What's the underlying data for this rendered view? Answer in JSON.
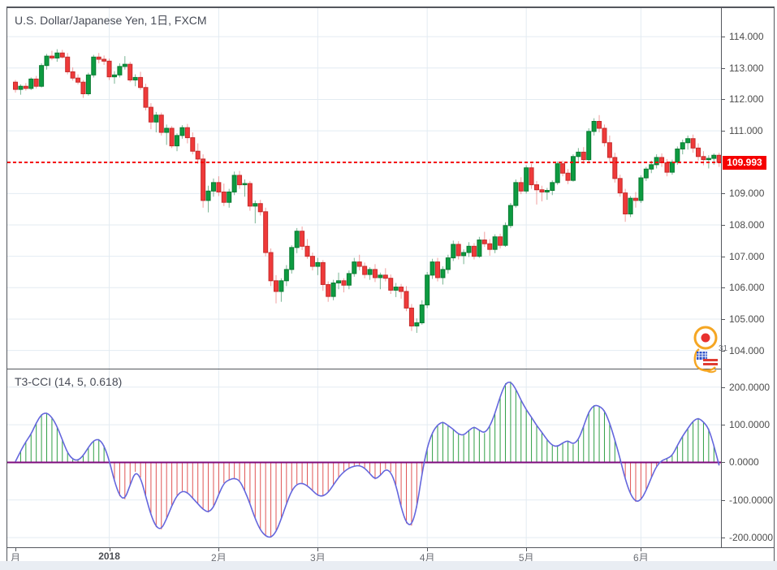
{
  "page": {
    "frame_border_color": "#54575d",
    "grid_color": "#e3ebf2",
    "background": "#ffffff"
  },
  "main_chart": {
    "legend": "U.S. Dollar/Japanese Yen, 1日, FXCM",
    "current_price_label": "109.993",
    "current_price_color": "#f50000",
    "price_axis_labels": [
      "114.000",
      "113.000",
      "112.000",
      "111.000",
      "109.000",
      "108.000",
      "107.000",
      "106.000",
      "105.000",
      "104.000"
    ],
    "price_axis_values": [
      114,
      113,
      112,
      111,
      109,
      108,
      107,
      106,
      105,
      104
    ]
  },
  "indicator": {
    "legend": "T3-CCI (14, 5, 0.618)",
    "axis_labels": [
      "200.0000",
      "100.0000",
      "0.0000",
      "-100.0000",
      "-200.0000"
    ],
    "axis_values": [
      200,
      100,
      0,
      -100,
      -200
    ]
  },
  "time_axis": {
    "labels": [
      {
        "text": "月",
        "index": 0,
        "bold": false
      },
      {
        "text": "2018",
        "index": 18,
        "bold": true
      },
      {
        "text": "2月",
        "index": 39,
        "bold": false
      },
      {
        "text": "3月",
        "index": 58,
        "bold": false
      },
      {
        "text": "4月",
        "index": 79,
        "bold": false
      },
      {
        "text": "5月",
        "index": 98,
        "bold": false
      },
      {
        "text": "6月",
        "index": 120,
        "bold": false
      }
    ]
  },
  "watermark": {
    "badge_text": "31"
  },
  "chart_data": [
    {
      "type": "candlestick",
      "title": "U.S. Dollar/Japanese Yen, 1日, FXCM",
      "symbol": "U.S. Dollar/Japanese Yen",
      "interval": "1日",
      "exchange": "FXCM",
      "last_price": 109.993,
      "ylim": [
        103.42,
        114.91
      ],
      "up_color": "#0d9b41",
      "down_color": "#ef3a3a",
      "candles": [
        [
          112.55,
          112.62,
          112.22,
          112.32
        ],
        [
          112.32,
          112.48,
          112.15,
          112.42
        ],
        [
          112.42,
          112.52,
          112.28,
          112.35
        ],
        [
          112.35,
          112.7,
          112.3,
          112.65
        ],
        [
          112.65,
          112.75,
          112.35,
          112.42
        ],
        [
          112.42,
          113.15,
          112.38,
          113.08
        ],
        [
          113.08,
          113.45,
          112.95,
          113.38
        ],
        [
          113.38,
          113.55,
          113.25,
          113.32
        ],
        [
          113.32,
          113.6,
          113.2,
          113.48
        ],
        [
          113.48,
          113.58,
          113.3,
          113.35
        ],
        [
          113.35,
          113.48,
          112.8,
          112.88
        ],
        [
          112.88,
          113.02,
          112.6,
          112.68
        ],
        [
          112.68,
          112.8,
          112.48,
          112.55
        ],
        [
          112.55,
          112.62,
          112.05,
          112.18
        ],
        [
          112.18,
          112.85,
          112.12,
          112.78
        ],
        [
          112.78,
          113.42,
          112.7,
          113.35
        ],
        [
          113.35,
          113.48,
          113.15,
          113.28
        ],
        [
          113.28,
          113.4,
          113.1,
          113.22
        ],
        [
          113.22,
          113.3,
          112.62,
          112.72
        ],
        [
          112.72,
          112.9,
          112.5,
          112.78
        ],
        [
          112.78,
          113.15,
          112.7,
          113.05
        ],
        [
          113.05,
          113.38,
          112.95,
          113.12
        ],
        [
          113.12,
          113.2,
          112.55,
          112.62
        ],
        [
          112.62,
          112.8,
          112.42,
          112.7
        ],
        [
          112.7,
          112.88,
          112.3,
          112.38
        ],
        [
          112.38,
          112.5,
          111.65,
          111.75
        ],
        [
          111.75,
          111.88,
          111.05,
          111.28
        ],
        [
          111.28,
          111.6,
          110.95,
          111.5
        ],
        [
          111.5,
          111.58,
          110.85,
          110.95
        ],
        [
          110.95,
          111.2,
          110.55,
          111.08
        ],
        [
          111.08,
          111.15,
          110.45,
          110.52
        ],
        [
          110.52,
          110.92,
          110.35,
          110.85
        ],
        [
          110.85,
          111.18,
          110.75,
          111.1
        ],
        [
          111.1,
          111.22,
          110.6,
          110.78
        ],
        [
          110.78,
          110.95,
          110.25,
          110.35
        ],
        [
          110.35,
          110.6,
          109.95,
          110.1
        ],
        [
          110.1,
          110.25,
          108.55,
          108.78
        ],
        [
          108.78,
          109.25,
          108.4,
          109.08
        ],
        [
          109.08,
          109.48,
          108.9,
          109.35
        ],
        [
          109.35,
          109.55,
          108.92,
          109.05
        ],
        [
          109.05,
          109.32,
          108.6,
          108.72
        ],
        [
          108.72,
          109.15,
          108.55,
          109.05
        ],
        [
          109.05,
          109.7,
          108.95,
          109.58
        ],
        [
          109.58,
          109.72,
          109.15,
          109.28
        ],
        [
          109.28,
          109.45,
          108.9,
          109.32
        ],
        [
          109.32,
          109.4,
          108.45,
          108.6
        ],
        [
          108.6,
          108.78,
          108.05,
          108.68
        ],
        [
          108.68,
          108.8,
          108.3,
          108.42
        ],
        [
          108.42,
          108.55,
          107.0,
          107.12
        ],
        [
          107.12,
          107.25,
          106.05,
          106.22
        ],
        [
          106.22,
          106.4,
          105.5,
          105.88
        ],
        [
          105.88,
          106.3,
          105.55,
          106.22
        ],
        [
          106.22,
          106.72,
          106.05,
          106.58
        ],
        [
          106.58,
          107.35,
          106.45,
          107.28
        ],
        [
          107.28,
          107.9,
          107.1,
          107.8
        ],
        [
          107.8,
          107.95,
          107.2,
          107.32
        ],
        [
          107.32,
          107.55,
          106.92,
          107.0
        ],
        [
          107.0,
          107.12,
          106.55,
          106.68
        ],
        [
          106.68,
          106.95,
          106.4,
          106.8
        ],
        [
          106.8,
          106.88,
          105.9,
          106.1
        ],
        [
          106.1,
          106.2,
          105.55,
          105.72
        ],
        [
          105.72,
          106.25,
          105.6,
          106.15
        ],
        [
          106.15,
          106.48,
          105.95,
          106.22
        ],
        [
          106.22,
          106.3,
          105.85,
          106.08
        ],
        [
          106.08,
          106.55,
          105.95,
          106.45
        ],
        [
          106.45,
          106.95,
          106.35,
          106.82
        ],
        [
          106.82,
          107.05,
          106.55,
          106.68
        ],
        [
          106.68,
          106.8,
          106.3,
          106.42
        ],
        [
          106.42,
          106.65,
          106.25,
          106.58
        ],
        [
          106.58,
          106.75,
          106.18,
          106.32
        ],
        [
          106.32,
          106.48,
          105.95,
          106.4
        ],
        [
          106.4,
          106.62,
          106.2,
          106.3
        ],
        [
          106.3,
          106.42,
          105.8,
          105.92
        ],
        [
          105.92,
          106.15,
          105.7,
          106.02
        ],
        [
          106.02,
          106.12,
          105.65,
          105.88
        ],
        [
          105.88,
          106.05,
          105.25,
          105.35
        ],
        [
          105.35,
          105.48,
          104.62,
          104.78
        ],
        [
          104.78,
          105.02,
          104.56,
          104.88
        ],
        [
          104.88,
          105.6,
          104.82,
          105.45
        ],
        [
          105.45,
          106.5,
          105.35,
          106.4
        ],
        [
          106.4,
          106.92,
          106.28,
          106.82
        ],
        [
          106.82,
          106.95,
          106.2,
          106.32
        ],
        [
          106.32,
          106.68,
          106.1,
          106.58
        ],
        [
          106.58,
          107.05,
          106.45,
          106.95
        ],
        [
          106.95,
          107.5,
          106.85,
          107.38
        ],
        [
          107.38,
          107.48,
          106.9,
          107.02
        ],
        [
          107.02,
          107.22,
          106.75,
          107.12
        ],
        [
          107.12,
          107.45,
          106.98,
          107.32
        ],
        [
          107.32,
          107.42,
          106.9,
          107.0
        ],
        [
          107.0,
          107.62,
          106.95,
          107.52
        ],
        [
          107.52,
          107.78,
          107.3,
          107.4
        ],
        [
          107.4,
          107.55,
          107.02,
          107.22
        ],
        [
          107.22,
          107.7,
          107.1,
          107.62
        ],
        [
          107.62,
          107.72,
          107.25,
          107.35
        ],
        [
          107.35,
          108.08,
          107.3,
          107.98
        ],
        [
          107.98,
          108.7,
          107.9,
          108.62
        ],
        [
          108.62,
          109.45,
          108.55,
          109.35
        ],
        [
          109.35,
          109.52,
          108.98,
          109.08
        ],
        [
          109.08,
          109.9,
          109.0,
          109.82
        ],
        [
          109.82,
          109.95,
          109.15,
          109.28
        ],
        [
          109.28,
          109.4,
          108.65,
          109.12
        ],
        [
          109.12,
          109.25,
          108.75,
          109.05
        ],
        [
          109.05,
          109.18,
          108.8,
          109.1
        ],
        [
          109.1,
          109.42,
          108.95,
          109.35
        ],
        [
          109.35,
          110.02,
          109.28,
          109.95
        ],
        [
          109.95,
          110.05,
          109.55,
          109.65
        ],
        [
          109.65,
          109.78,
          109.3,
          109.42
        ],
        [
          109.42,
          110.25,
          109.38,
          110.18
        ],
        [
          110.18,
          110.45,
          110.02,
          110.32
        ],
        [
          110.32,
          110.48,
          109.95,
          110.08
        ],
        [
          110.08,
          111.08,
          110.02,
          110.98
        ],
        [
          110.98,
          111.4,
          110.85,
          111.3
        ],
        [
          111.3,
          111.5,
          110.95,
          111.08
        ],
        [
          111.08,
          111.2,
          110.5,
          110.62
        ],
        [
          110.62,
          110.85,
          110.02,
          110.15
        ],
        [
          110.15,
          110.3,
          109.35,
          109.48
        ],
        [
          109.48,
          109.6,
          108.9,
          109.02
        ],
        [
          109.02,
          109.15,
          108.1,
          108.35
        ],
        [
          108.35,
          108.92,
          108.25,
          108.85
        ],
        [
          108.85,
          109.05,
          108.55,
          108.78
        ],
        [
          108.78,
          109.58,
          108.7,
          109.5
        ],
        [
          109.5,
          109.85,
          109.4,
          109.78
        ],
        [
          109.78,
          110.05,
          109.65,
          109.92
        ],
        [
          109.92,
          110.25,
          109.8,
          110.15
        ],
        [
          110.15,
          110.28,
          109.85,
          109.98
        ],
        [
          109.98,
          110.1,
          109.55,
          109.68
        ],
        [
          109.68,
          110.08,
          109.6,
          110.0
        ],
        [
          110.0,
          110.5,
          109.92,
          110.42
        ],
        [
          110.42,
          110.72,
          110.25,
          110.62
        ],
        [
          110.62,
          110.85,
          110.4,
          110.75
        ],
        [
          110.75,
          110.88,
          110.3,
          110.45
        ],
        [
          110.45,
          110.6,
          110.05,
          110.18
        ],
        [
          110.18,
          110.35,
          109.9,
          110.08
        ],
        [
          110.08,
          110.22,
          109.8,
          110.12
        ],
        [
          110.12,
          110.28,
          109.92,
          110.22
        ],
        [
          110.22,
          110.3,
          109.85,
          109.99
        ]
      ]
    },
    {
      "type": "line",
      "title": "T3-CCI (14, 5, 0.618)",
      "ylim": [
        -225.6,
        247.0
      ],
      "line_color": "#6466dd",
      "zero_line_color": "#7d0b7d",
      "positive_hatch_color": "#2f9e45",
      "negative_hatch_color": "#e05555",
      "values": [
        2,
        30,
        55,
        75,
        105,
        128,
        132,
        120,
        95,
        60,
        25,
        8,
        5,
        18,
        40,
        58,
        62,
        45,
        5,
        -50,
        -90,
        -98,
        -60,
        -25,
        -40,
        -90,
        -140,
        -172,
        -178,
        -150,
        -115,
        -88,
        -76,
        -80,
        -95,
        -110,
        -125,
        -133,
        -120,
        -85,
        -55,
        -46,
        -42,
        -48,
        -75,
        -110,
        -150,
        -180,
        -196,
        -200,
        -185,
        -150,
        -110,
        -75,
        -58,
        -55,
        -62,
        -75,
        -88,
        -90,
        -80,
        -60,
        -40,
        -25,
        -15,
        -10,
        -8,
        -15,
        -30,
        -45,
        -35,
        -18,
        -25,
        -60,
        -120,
        -162,
        -168,
        -120,
        -30,
        40,
        80,
        100,
        108,
        98,
        88,
        75,
        72,
        85,
        95,
        85,
        78,
        95,
        130,
        175,
        210,
        215,
        195,
        165,
        140,
        120,
        98,
        80,
        60,
        45,
        42,
        52,
        58,
        48,
        60,
        95,
        135,
        152,
        150,
        138,
        105,
        60,
        10,
        -45,
        -85,
        -105,
        -100,
        -75,
        -40,
        -10,
        5,
        10,
        18,
        45,
        70,
        90,
        110,
        118,
        108,
        90,
        45,
        -8
      ]
    }
  ]
}
